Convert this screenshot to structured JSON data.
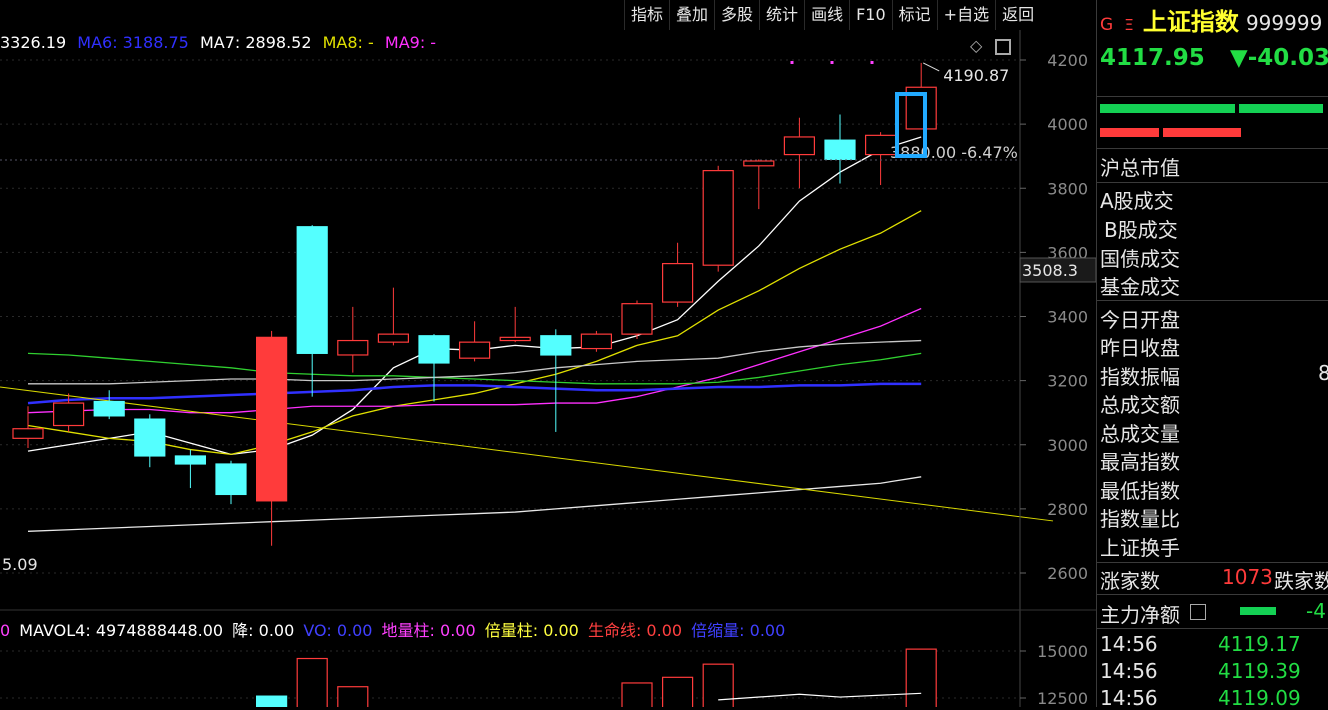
{
  "toolbar": {
    "items": [
      "指标",
      "叠加",
      "多股",
      "统计",
      "画线",
      "F10",
      "标记",
      "+自选",
      "返回"
    ]
  },
  "ma_legend": [
    {
      "text": "3326.19",
      "color": "#ffffff"
    },
    {
      "text": "MA6: 3188.75",
      "color": "#3030ff"
    },
    {
      "text": "MA7: 2898.52",
      "color": "#ffffff"
    },
    {
      "text": "MA8: -",
      "color": "#e0e000"
    },
    {
      "text": "MA9: -",
      "color": "#ff30ff"
    }
  ],
  "vol_legend": [
    {
      "text": "0",
      "color": "#ff40ff"
    },
    {
      "text": "MAVOL4: 4974888448.00",
      "color": "#ffffff"
    },
    {
      "text": "降: 0.00",
      "color": "#ffffff"
    },
    {
      "text": "VO: 0.00",
      "color": "#4040ff"
    },
    {
      "text": "地量柱: 0.00",
      "color": "#ff40ff"
    },
    {
      "text": "倍量柱: 0.00",
      "color": "#ffff40"
    },
    {
      "text": "生命线: 0.00",
      "color": "#ff4040"
    },
    {
      "text": "倍缩量: 0.00",
      "color": "#4040ff"
    }
  ],
  "annotations": {
    "high_label": "4190.87",
    "pct_label": "3880.00 -6.47%",
    "low_label": "5.09",
    "crosshair_price": "3508.3"
  },
  "panel": {
    "badge_g": "G",
    "badge_e": "Ξ",
    "name": "上证指数",
    "code": "999999",
    "price": "4117.95",
    "change": "▼-40.03",
    "market_cap_label": "沪总市值",
    "turnover_labels": [
      "A股成交",
      "B股成交",
      "国债成交",
      "基金成交"
    ],
    "stat_labels": [
      "今日开盘",
      "昨日收盘",
      "指数振幅",
      "总成交额",
      "总成交量",
      "最高指数",
      "最低指数",
      "指数量比",
      "上证换手"
    ],
    "amplitude_partial": "8",
    "up_label": "涨家数",
    "up_count": "1073",
    "down_label": "跌家数",
    "main_net_label": "主力净额",
    "main_net_value": "-4",
    "ticks": [
      {
        "time": "14:56",
        "price": "4119.17"
      },
      {
        "time": "14:56",
        "price": "4119.39"
      },
      {
        "time": "14:56",
        "price": "4119.09"
      }
    ]
  },
  "colors": {
    "up": "#ff3b3b",
    "down": "#54ffff",
    "price_green": "#22dd44",
    "axis": "#8a8a8a"
  },
  "chart_data": {
    "type": "candlestick",
    "ylim": [
      2600,
      4250
    ],
    "y_ticks": [
      4200,
      4000,
      3800,
      3600,
      3400,
      3200,
      3000,
      2800,
      2600
    ],
    "candles": [
      {
        "o": 3020,
        "c": 3050,
        "h": 3120,
        "l": 2990
      },
      {
        "o": 3060,
        "c": 3130,
        "h": 3160,
        "l": 3040
      },
      {
        "o": 3135,
        "c": 3090,
        "h": 3170,
        "l": 3080
      },
      {
        "o": 3080,
        "c": 2965,
        "h": 3095,
        "l": 2930
      },
      {
        "o": 2965,
        "c": 2940,
        "h": 2985,
        "l": 2865
      },
      {
        "o": 2940,
        "c": 2845,
        "h": 2950,
        "l": 2815
      },
      {
        "o": 2825,
        "c": 3335,
        "h": 3355,
        "l": 2685
      },
      {
        "o": 3680,
        "c": 3285,
        "h": 3685,
        "l": 3150
      },
      {
        "o": 3280,
        "c": 3325,
        "h": 3430,
        "l": 3225
      },
      {
        "o": 3320,
        "c": 3345,
        "h": 3490,
        "l": 3310
      },
      {
        "o": 3340,
        "c": 3255,
        "h": 3345,
        "l": 3135
      },
      {
        "o": 3270,
        "c": 3320,
        "h": 3385,
        "l": 3260
      },
      {
        "o": 3325,
        "c": 3335,
        "h": 3430,
        "l": 3320
      },
      {
        "o": 3340,
        "c": 3280,
        "h": 3360,
        "l": 3040
      },
      {
        "o": 3300,
        "c": 3345,
        "h": 3355,
        "l": 3290
      },
      {
        "o": 3345,
        "c": 3440,
        "h": 3450,
        "l": 3330
      },
      {
        "o": 3445,
        "c": 3565,
        "h": 3630,
        "l": 3430
      },
      {
        "o": 3560,
        "c": 3855,
        "h": 3870,
        "l": 3540
      },
      {
        "o": 3870,
        "c": 3885,
        "h": 3890,
        "l": 3735
      },
      {
        "o": 3905,
        "c": 3960,
        "h": 4020,
        "l": 3800
      },
      {
        "o": 3950,
        "c": 3890,
        "h": 4030,
        "l": 3815
      },
      {
        "o": 3905,
        "c": 3965,
        "h": 3975,
        "l": 3810
      },
      {
        "o": 3985,
        "c": 4115,
        "h": 4190.87,
        "l": 3985
      }
    ],
    "ma_lines": [
      {
        "color": "#ffffff",
        "values": [
          2980,
          3000,
          3020,
          3040,
          3005,
          2970,
          2985,
          3030,
          3110,
          3240,
          3300,
          3295,
          3310,
          3300,
          3305,
          3340,
          3390,
          3510,
          3620,
          3760,
          3850,
          3920,
          3960
        ]
      },
      {
        "color": "#e0e000",
        "values": [
          3060,
          3040,
          3020,
          3010,
          2985,
          2970,
          3000,
          3040,
          3090,
          3120,
          3140,
          3160,
          3190,
          3220,
          3260,
          3310,
          3340,
          3420,
          3480,
          3550,
          3610,
          3660,
          3730
        ]
      },
      {
        "color": "#ff30ff",
        "values": [
          3100,
          3105,
          3110,
          3110,
          3100,
          3100,
          3110,
          3120,
          3120,
          3120,
          3125,
          3125,
          3125,
          3130,
          3130,
          3150,
          3180,
          3210,
          3250,
          3290,
          3330,
          3370,
          3425
        ]
      },
      {
        "color": "#30d030",
        "values": [
          3285,
          3280,
          3270,
          3260,
          3250,
          3240,
          3225,
          3220,
          3215,
          3215,
          3210,
          3205,
          3200,
          3195,
          3190,
          3190,
          3190,
          3195,
          3210,
          3230,
          3250,
          3265,
          3285
        ]
      },
      {
        "color": "#3030ff",
        "values": [
          3130,
          3140,
          3145,
          3145,
          3150,
          3155,
          3160,
          3165,
          3170,
          3180,
          3185,
          3185,
          3180,
          3175,
          3170,
          3170,
          3175,
          3180,
          3180,
          3185,
          3185,
          3190,
          3190
        ]
      },
      {
        "color": "#c8c8c8",
        "values": [
          3190,
          3190,
          3190,
          3195,
          3200,
          3205,
          3205,
          3200,
          3200,
          3205,
          3210,
          3215,
          3225,
          3240,
          3250,
          3260,
          3265,
          3270,
          3290,
          3305,
          3315,
          3320,
          3325
        ]
      },
      {
        "color": "#e8e8e8",
        "values": [
          2730,
          2735,
          2740,
          2745,
          2750,
          2755,
          2760,
          2765,
          2770,
          2775,
          2780,
          2785,
          2790,
          2800,
          2810,
          2820,
          2830,
          2840,
          2850,
          2860,
          2870,
          2880,
          2900
        ]
      }
    ],
    "trendline": {
      "color": "#d8d800",
      "from": [
        0,
        3180
      ],
      "to": [
        25,
        2700
      ]
    },
    "volume": {
      "ylim": [
        10000,
        17000
      ],
      "y_ticks": [
        15000,
        12500
      ],
      "bars": [
        {
          "i": 6,
          "v": 12600,
          "up": false
        },
        {
          "i": 7,
          "v": 14600,
          "up": true
        },
        {
          "i": 8,
          "v": 13100,
          "up": true
        },
        {
          "i": 15,
          "v": 13300,
          "up": true
        },
        {
          "i": 16,
          "v": 13600,
          "up": true
        },
        {
          "i": 17,
          "v": 14300,
          "up": true
        },
        {
          "i": 22,
          "v": 15100,
          "up": true
        }
      ],
      "mavol": [
        {
          "i": 17,
          "v": 12400
        },
        {
          "i": 19,
          "v": 12700
        },
        {
          "i": 20,
          "v": 12550
        },
        {
          "i": 22,
          "v": 12750
        }
      ]
    }
  }
}
